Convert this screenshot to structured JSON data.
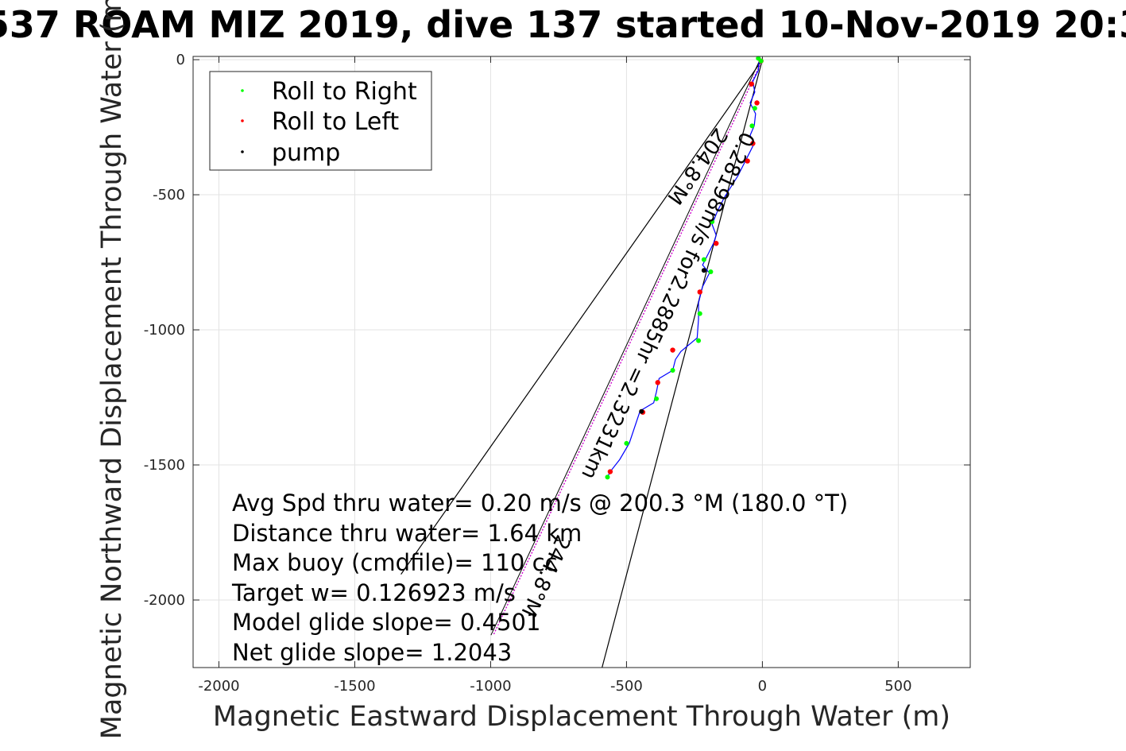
{
  "chart_data": {
    "type": "scatter",
    "title": "537 ROAM MIZ 2019, dive 137 started 10-Nov-2019 20:3",
    "xlabel": "Magnetic Eastward Displacement Through Water (m)",
    "ylabel": "Magnetic Northward Displacement Through Water (m)",
    "xlim": [
      -2095,
      765
    ],
    "ylim": [
      -2250,
      12
    ],
    "xticks": [
      -2000,
      -1500,
      -1000,
      -500,
      0,
      500
    ],
    "yticks": [
      0,
      -500,
      -1000,
      -1500,
      -2000
    ],
    "xtick_labels": [
      "-2000",
      "-1500",
      "-1000",
      "-500",
      "0",
      "500"
    ],
    "ytick_labels": [
      "0",
      "-500",
      "-1000",
      "-1500",
      "-2000"
    ],
    "grid": true,
    "legend_position": "top-left",
    "legend": [
      {
        "label": "Roll to Right",
        "color": "#00ff00"
      },
      {
        "label": "Roll to Left",
        "color": "#ff0000"
      },
      {
        "label": "pump",
        "color": "#000000"
      }
    ],
    "track": [
      [
        -12,
        0
      ],
      [
        -15,
        -40
      ],
      [
        -35,
        -80
      ],
      [
        -28,
        -120
      ],
      [
        -45,
        -160
      ],
      [
        -25,
        -200
      ],
      [
        -30,
        -245
      ],
      [
        -45,
        -280
      ],
      [
        -30,
        -310
      ],
      [
        -50,
        -350
      ],
      [
        -70,
        -390
      ],
      [
        -90,
        -430
      ],
      [
        -115,
        -470
      ],
      [
        -140,
        -510
      ],
      [
        -165,
        -560
      ],
      [
        -185,
        -610
      ],
      [
        -170,
        -650
      ],
      [
        -180,
        -680
      ],
      [
        -200,
        -720
      ],
      [
        -220,
        -760
      ],
      [
        -195,
        -790
      ],
      [
        -220,
        -840
      ],
      [
        -235,
        -900
      ],
      [
        -235,
        -960
      ],
      [
        -240,
        -1030
      ],
      [
        -300,
        -1080
      ],
      [
        -320,
        -1110
      ],
      [
        -330,
        -1150
      ],
      [
        -380,
        -1180
      ],
      [
        -390,
        -1230
      ],
      [
        -400,
        -1270
      ],
      [
        -450,
        -1300
      ],
      [
        -490,
        -1420
      ],
      [
        -525,
        -1480
      ],
      [
        -560,
        -1525
      ],
      [
        -570,
        -1545
      ]
    ],
    "roll_right": [
      [
        -15,
        5
      ],
      [
        -5,
        -5
      ],
      [
        -28,
        -180
      ],
      [
        -38,
        -245
      ],
      [
        -185,
        -600
      ],
      [
        -215,
        -740
      ],
      [
        -190,
        -785
      ],
      [
        -230,
        -940
      ],
      [
        -235,
        -1040
      ],
      [
        -330,
        -1150
      ],
      [
        -390,
        -1255
      ],
      [
        -500,
        -1420
      ],
      [
        -570,
        -1545
      ]
    ],
    "roll_left": [
      [
        -5,
        -5
      ],
      [
        -40,
        -90
      ],
      [
        -20,
        -160
      ],
      [
        -35,
        -310
      ],
      [
        -55,
        -375
      ],
      [
        -170,
        -680
      ],
      [
        -230,
        -860
      ],
      [
        -330,
        -1075
      ],
      [
        -385,
        -1195
      ],
      [
        -440,
        -1305
      ],
      [
        -560,
        -1525
      ]
    ],
    "pump": [
      [
        -215,
        -780
      ],
      [
        -445,
        -1302
      ]
    ],
    "heading_lines": {
      "origin": [
        0,
        0
      ],
      "black_a_end": [
        -1330,
        -1905
      ],
      "black_b_end": [
        -590,
        -2250
      ],
      "magenta_end": [
        -990,
        -2130
      ]
    },
    "line_labels": [
      {
        "text": "204.8°M",
        "x": -260,
        "y": -380
      },
      {
        "text": "0.28198m/s for2.2885hr =2.3231km",
        "x": -370,
        "y": -900
      },
      {
        "text": "244.8°M",
        "x": -820,
        "y": -1900
      }
    ],
    "annotations": [
      "Avg Spd thru water=  0.20 m/s @ 200.3 °M (180.0 °T)",
      "Distance thru water=  1.64 km",
      "Max buoy (cmdfile)= 110 cc",
      "Target w= 0.126923 m/s",
      "Model glide slope= 0.4501",
      "Net glide slope= 1.2043"
    ]
  }
}
